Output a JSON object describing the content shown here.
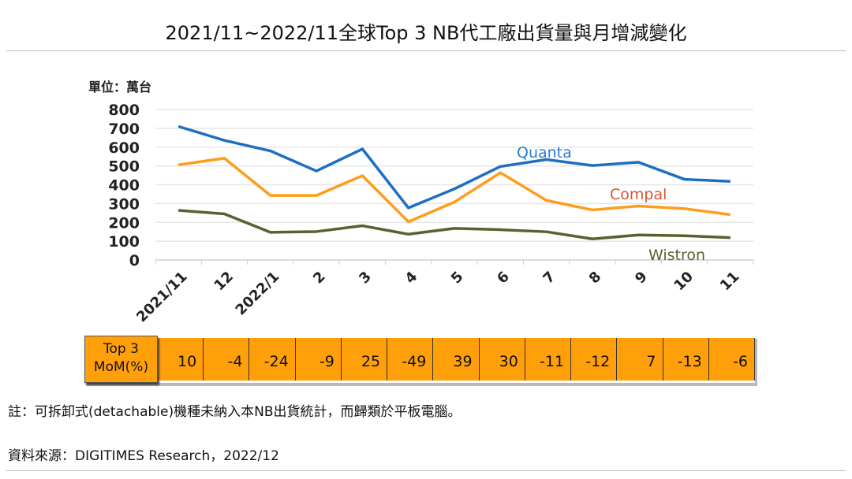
{
  "title": "2021/11~2022/11全球Top 3 NB代工廠出貨量與月增減變化",
  "chart_data": {
    "type": "line",
    "unit_label": "單位：萬台",
    "categories": [
      "2021/11",
      "12",
      "2022/1",
      "2",
      "3",
      "4",
      "5",
      "6",
      "7",
      "8",
      "9",
      "10",
      "11"
    ],
    "ylim": [
      0,
      800
    ],
    "yticks": [
      0,
      100,
      200,
      300,
      400,
      500,
      600,
      700,
      800
    ],
    "grid": true,
    "series": [
      {
        "name": "Quanta",
        "color": "#1f6fc1",
        "label_color": "#2a7bd0",
        "values": [
          710,
          636,
          580,
          473,
          590,
          277,
          378,
          497,
          534,
          502,
          520,
          429,
          418
        ]
      },
      {
        "name": "Compal",
        "color": "#ff9d1a",
        "label_color": "#d9552f",
        "values": [
          506,
          541,
          343,
          343,
          448,
          203,
          308,
          464,
          317,
          266,
          287,
          273,
          241
        ]
      },
      {
        "name": "Wistron",
        "color": "#5e5e2e",
        "label_color": "#5e6030",
        "values": [
          264,
          245,
          147,
          151,
          182,
          137,
          168,
          161,
          150,
          112,
          133,
          129,
          119
        ]
      }
    ]
  },
  "mom_table": {
    "header": [
      "Top 3",
      "MoM(%)"
    ],
    "values": [
      "10",
      "-4",
      "-24",
      "-9",
      "25",
      "-49",
      "39",
      "30",
      "-11",
      "-12",
      "7",
      "-13",
      "-6"
    ],
    "color": "#ff9f0a"
  },
  "note": "註：可拆卸式(detachable)機種未納入本NB出貨統計，而歸類於平板電腦。",
  "source": "資料來源：DIGITIMES Research，2022/12"
}
